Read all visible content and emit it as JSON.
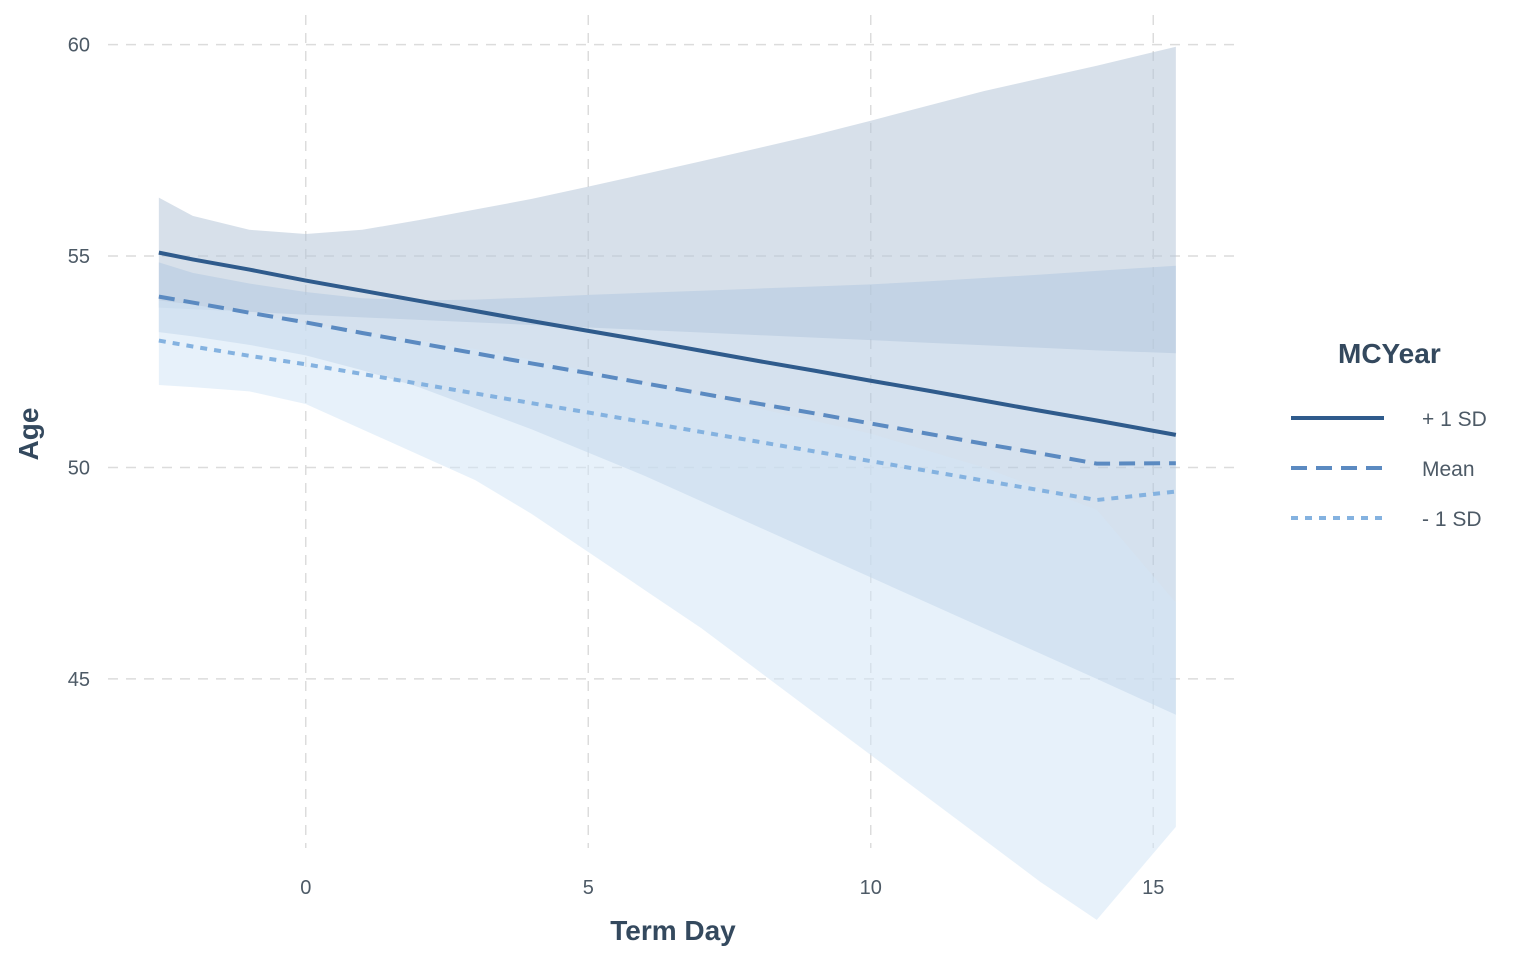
{
  "chart_data": {
    "type": "line",
    "title": "",
    "xlabel": "Term Day",
    "ylabel": "Age",
    "xlim": [
      -3.5,
      16.5
    ],
    "ylim": [
      41.0,
      60.7
    ],
    "x_ticks": [
      0,
      5,
      10,
      15
    ],
    "y_ticks": [
      45,
      50,
      55,
      60
    ],
    "grid": true,
    "legend": {
      "title": "MCYear",
      "position": "right",
      "entries": [
        "+ 1 SD",
        "Mean",
        "- 1 SD"
      ]
    },
    "x": [
      -2.6,
      -2,
      -1,
      0,
      1,
      2,
      3,
      4,
      5,
      6,
      7,
      8,
      9,
      10,
      11,
      12,
      13,
      14,
      15.4
    ],
    "series": [
      {
        "name": "+ 1 SD",
        "color": "#2f5b8c",
        "dash": "solid",
        "band_color": "#b6c6d8",
        "values": [
          55.08,
          54.92,
          54.68,
          54.42,
          54.18,
          53.94,
          53.7,
          53.46,
          53.23,
          53.0,
          52.76,
          52.52,
          52.29,
          52.05,
          51.82,
          51.58,
          51.34,
          51.11,
          50.77
        ],
        "lower": [
          53.78,
          53.74,
          53.68,
          53.61,
          53.55,
          53.49,
          53.43,
          53.37,
          53.31,
          53.25,
          53.19,
          53.13,
          53.07,
          53.01,
          52.95,
          52.89,
          52.83,
          52.77,
          52.7
        ],
        "upper": [
          56.38,
          55.95,
          55.62,
          55.52,
          55.62,
          55.85,
          56.1,
          56.35,
          56.64,
          56.94,
          57.24,
          57.55,
          57.86,
          58.2,
          58.55,
          58.9,
          59.2,
          59.5,
          59.95
        ]
      },
      {
        "name": "Mean",
        "color": "#5b8ac1",
        "dash": "dashed",
        "band_color": "#b2c8e0",
        "values": [
          54.04,
          53.9,
          53.66,
          53.43,
          53.18,
          52.94,
          52.7,
          52.46,
          52.23,
          51.99,
          51.75,
          51.51,
          51.28,
          51.04,
          50.8,
          50.56,
          50.33,
          50.09,
          50.1
        ],
        "lower": [
          53.2,
          53.1,
          52.9,
          52.65,
          52.3,
          51.9,
          51.4,
          50.9,
          50.35,
          49.8,
          49.2,
          48.6,
          48.0,
          47.4,
          46.8,
          46.2,
          45.6,
          45.0,
          44.15
        ],
        "upper": [
          54.85,
          54.6,
          54.35,
          54.15,
          54.0,
          53.95,
          53.97,
          54.02,
          54.08,
          54.13,
          54.18,
          54.23,
          54.28,
          54.33,
          54.4,
          54.48,
          54.56,
          54.65,
          54.77
        ]
      },
      {
        "name": "- 1 SD",
        "color": "#84b2e0",
        "dash": "dotted",
        "band_color": "#d3e5f6",
        "values": [
          53.0,
          52.86,
          52.64,
          52.44,
          52.21,
          51.98,
          51.75,
          51.52,
          51.3,
          51.07,
          50.84,
          50.61,
          50.38,
          50.15,
          49.92,
          49.69,
          49.46,
          49.23,
          49.43
        ],
        "lower": [
          51.95,
          51.9,
          51.8,
          51.5,
          50.9,
          50.3,
          49.7,
          48.9,
          48.0,
          47.1,
          46.2,
          45.2,
          44.2,
          43.2,
          42.2,
          41.2,
          40.2,
          39.3,
          41.5
        ],
        "upper": [
          53.95,
          53.85,
          53.65,
          53.42,
          53.2,
          53.0,
          52.8,
          52.55,
          52.28,
          52.0,
          51.7,
          51.4,
          51.1,
          50.8,
          50.4,
          50.0,
          49.5,
          49.0,
          46.8
        ]
      }
    ]
  }
}
